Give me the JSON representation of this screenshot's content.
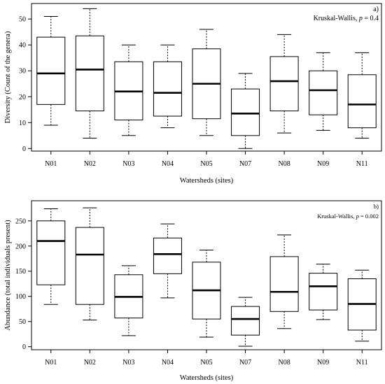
{
  "chart_data": [
    {
      "type": "box",
      "panel_label": "a)",
      "annotation_prefix": "Kruskal-Wallis, ",
      "annotation_p": "p",
      "annotation_value": " = 0.4",
      "xlabel": "Watersheds (sites)",
      "ylabel": "Diversity (Count of the genera)",
      "ylim": [
        -1,
        56
      ],
      "yticks": [
        0,
        10,
        20,
        30,
        40,
        50
      ],
      "categories": [
        "N01",
        "N02",
        "N03",
        "N04",
        "N05",
        "N07",
        "N08",
        "N09",
        "N11"
      ],
      "boxes": [
        {
          "min": 9,
          "q1": 17,
          "median": 29,
          "q3": 43,
          "max": 51
        },
        {
          "min": 4,
          "q1": 14.5,
          "median": 30.5,
          "q3": 43.5,
          "max": 54
        },
        {
          "min": 5,
          "q1": 11,
          "median": 22,
          "q3": 33.5,
          "max": 40
        },
        {
          "min": 8,
          "q1": 12.5,
          "median": 21.5,
          "q3": 33.5,
          "max": 40
        },
        {
          "min": 5,
          "q1": 11.5,
          "median": 25,
          "q3": 38.5,
          "max": 46
        },
        {
          "min": 0,
          "q1": 5,
          "median": 13.5,
          "q3": 23,
          "max": 29
        },
        {
          "min": 6,
          "q1": 14.5,
          "median": 26,
          "q3": 35.5,
          "max": 44
        },
        {
          "min": 7,
          "q1": 13,
          "median": 22.5,
          "q3": 30,
          "max": 37
        },
        {
          "min": 4,
          "q1": 8,
          "median": 17,
          "q3": 28.5,
          "max": 37
        }
      ]
    },
    {
      "type": "box",
      "panel_label": "b)",
      "annotation_prefix": "Kruskal-Wallis, ",
      "annotation_p": "p",
      "annotation_value": " = 0.002",
      "xlabel": "Watersheds (sites)",
      "ylabel": "Abundance (total individuals present)",
      "ylim": [
        -6,
        290
      ],
      "yticks": [
        0,
        50,
        100,
        150,
        200,
        250
      ],
      "categories": [
        "N01",
        "N02",
        "N03",
        "N04",
        "N05",
        "N07",
        "N08",
        "N09",
        "N11"
      ],
      "boxes": [
        {
          "min": 84,
          "q1": 123,
          "median": 210,
          "q3": 250,
          "max": 274
        },
        {
          "min": 53,
          "q1": 84,
          "median": 183,
          "q3": 237,
          "max": 276
        },
        {
          "min": 22,
          "q1": 57,
          "median": 99,
          "q3": 143,
          "max": 161
        },
        {
          "min": 97,
          "q1": 145,
          "median": 184,
          "q3": 216,
          "max": 244
        },
        {
          "min": 19,
          "q1": 55,
          "median": 112,
          "q3": 168,
          "max": 192
        },
        {
          "min": 1,
          "q1": 23,
          "median": 55,
          "q3": 80,
          "max": 98
        },
        {
          "min": 36,
          "q1": 70,
          "median": 109,
          "q3": 179,
          "max": 222
        },
        {
          "min": 54,
          "q1": 73,
          "median": 120,
          "q3": 146,
          "max": 164
        },
        {
          "min": 11,
          "q1": 33,
          "median": 85,
          "q3": 135,
          "max": 152
        }
      ]
    }
  ]
}
